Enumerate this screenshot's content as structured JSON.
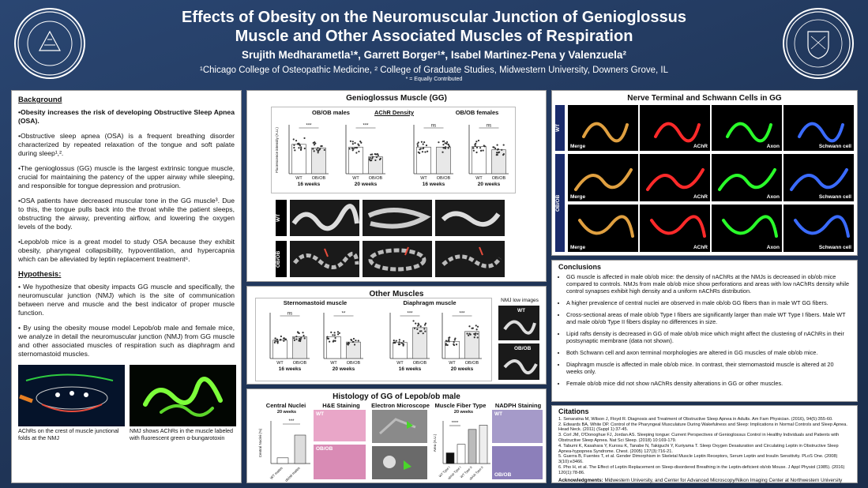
{
  "header": {
    "title_line1": "Effects of Obesity on the Neuromuscular Junction of Genioglossus",
    "title_line2": "Muscle and Other Associated Muscles of Respiration",
    "authors": "Srujith Medharametla¹*, Garrett Borger¹*, Isabel Martinez-Pena y Valenzuela²",
    "affiliations": "¹Chicago College of Osteopathic Medicine, ² College of Graduate Studies, Midwestern University, Downers Grove, IL",
    "note": "* = Equally Contributed"
  },
  "seal": {
    "left_text": "MIDWESTERN UNIVERSITY",
    "right_text": "MIDWESTERN UNIVERSITY",
    "right_year": "1900"
  },
  "background": {
    "heading": "Background",
    "p1": "•Obesity increases the risk of developing Obstructive Sleep Apnea (OSA).",
    "p2": "•Obstructive sleep apnea (OSA) is a frequent breathing disorder characterized by repeated relaxation of the tongue and soft palate during sleep¹,².",
    "p3": "•The genioglossus (GG) muscle is the largest extrinsic tongue muscle, crucial for maintaining the patency of the upper airway while sleeping, and responsible for tongue depression and protrusion.",
    "p4": "•OSA patients have decreased muscular tone in the GG muscle³. Due to this, the tongue pulls back into the throat while the patient sleeps, obstructing the airway, preventing airflow, and lowering the oxygen levels of the body.",
    "p5": "•Lepob/ob mice is a great model to study OSA because they exhibit obesity, pharyngeal collapsibility, hypoventilation, and hypercapnia which can be alleviated by leptin replacement treatment⁶."
  },
  "hypothesis": {
    "heading": "Hypothesis:",
    "p1": "• We hypothesize that obesity impacts GG muscle and specifically, the neuromuscular junction (NMJ) which is the site of communication between nerve and muscle and the best indicator of proper muscle function.",
    "p2": "• By using the obesity mouse model Lepob/ob male and female mice, we analyze in detail the neuromuscular junction (NMJ) from GG muscle and other associated muscles of respiration such as diaphragm and sternomastoid muscles.",
    "cap1": "AChRs on the crest of muscle junctional folds at the NMJ",
    "cap2": "NMJ shows AChRs in the muscle labeled with fluorescent green α-bungarotoxin"
  },
  "gg": {
    "title": "Genioglossus Muscle (GG)",
    "males": "OB/OB males",
    "density": "AChR Density",
    "females": "OB/OB females",
    "ylabel": "Fluorescence intensity (A.U.)",
    "wk16": "16 weeks",
    "wk20": "20 weeks",
    "wt": "WT",
    "obob": "OB/OB",
    "sig3": "***",
    "ns": "ns",
    "row_wt": "WT",
    "row_obob": "OB/OB"
  },
  "other": {
    "title": "Other Muscles",
    "sterno": "Sternomastoid muscle",
    "diaph": "Diaphragm muscle",
    "nmj_low": "NMJ low images",
    "ns": "ns",
    "sig2": "**",
    "sig3": "***",
    "wt": "WT",
    "obob": "OB/OB",
    "wk16": "16 weeks",
    "wk20": "20 weeks"
  },
  "hist": {
    "title": "Histology of GG of Lepob/ob male",
    "central": "Central Nuclei",
    "he": "H&E Staining",
    "em": "Electron Microscope",
    "fiber": "Muscle Fiber Type",
    "nadph": "NADPH Staining",
    "wk20": "20 weeks",
    "sig3": "***",
    "sig4": "****",
    "wt": "WT",
    "obob": "OB/OB",
    "ylabel_cn": "Central Nuclei (%)",
    "ylabel_area": "Area (A.U.)",
    "x_wt": "WT males",
    "x_ob": "ob/ob males"
  },
  "nerve": {
    "title": "Nerve Terminal and Schwann Cells in GG",
    "wt": "WT",
    "obob": "OB/OB",
    "merge": "Merge",
    "achr": "AChR",
    "axon": "Axon",
    "schwann": "Schwann cell"
  },
  "conclusions": {
    "heading": "Conclusions",
    "items": [
      "GG muscle is affected in male ob/ob mice: the density of nAChRs at the NMJs is decreased in ob/ob mice compared to controls. NMJs from male ob/ob mice show perforations and areas with low nAChRs density while control synapses exhibit high density and a uniform nAChRs distribution.",
      "A higher prevalence of central nuclei are observed in male ob/ob GG fibers than in male WT GG fibers.",
      "Cross-sectional areas of male ob/ob Type I fibers are significantly larger than male WT Type I fibers. Male WT and male ob/ob Type II fibers display no differences in size.",
      "Lipid rafts density is decreased in GG of male ob/ob mice which might affect the clustering of nAChRs in their postsynaptic membrane (data not shown).",
      "Both Schwann cell and axon terminal morphologies are altered in GG muscles of male ob/ob mice.",
      "Diaphragm muscle is affected in male ob/ob mice. In contrast, their sternomastoid muscle is altered at 20 weeks only.",
      "Female ob/ob mice did not show nAChRs density alterations in GG or other muscles."
    ]
  },
  "citations": {
    "heading": "Citations",
    "items": [
      "1. Senaratna M, Wilson J, Floyd R. Diagnosis and Treatment of Obstructive Sleep Apnea in Adults. Am Fam Physician. (2016), 94(5):355-60.",
      "2. Edwards BA, White DP. Control of the Pharyngeal Musculature During Wakefulness and Sleep: Implications in Normal Controls and Sleep Apnea. Head Neck. (2011) (Suppl 1):37-45.",
      "3. Corl JM, O'Donoghue FJ, Jordan AS. Sleeping tongue: Current Perspectives of Genioglossus Control in Healthy Individuals and Patients with Obstructive Sleep Apnea. Nat Sci Sleep. (2018) 10:169-179.",
      "4. Tabumi K, Kasahara Y, Kurosu K, Tanabe N, Takiguchi Y, Kuriyama T. Sleep Oxygen Desaturation and Circulating Leptin in Obstructive Sleep Apnea-hypopnea Syndrome. Chest. (2005) 127(3):716-21.",
      "5. Guerra B, Fuentes T, et al. Gender Dimorphism in Skeletal Muscle Leptin Receptors, Serum Leptin and Insulin Sensitivity. PLoS One. (2008) 3(10):e3466.",
      "6. Pho H, et al. The Effect of Leptin Replacement on Sleep-disordered Breathing in the Leptin-deficient ob/ob Mouse. J Appl Physiol (1985). (2016) 120(1):78-86."
    ],
    "ack_label": "Acknowledgments:",
    "ack_text": "Midwestern University, and Center for Advanced Microscopy/Nikon Imaging Center at Northwestern University"
  },
  "chart_data": [
    {
      "type": "scatter",
      "title": "OB/OB males",
      "categories": [
        "WT",
        "OB/OB"
      ],
      "values": [
        108,
        95
      ],
      "xlabel": "16 weeks",
      "ylabel": "Fluorescence intensity (A.U.)",
      "annotation": "***"
    },
    {
      "type": "scatter",
      "title": "AChR Density",
      "categories": [
        "WT",
        "OB/OB"
      ],
      "values": [
        98,
        62
      ],
      "xlabel": "20 weeks",
      "ylabel": "Fluorescence intensity (A.U.)",
      "annotation": "***"
    },
    {
      "type": "scatter",
      "title": "OB/OB females",
      "categories": [
        "WT",
        "OB/OB"
      ],
      "values": [
        98,
        98
      ],
      "xlabel": "16 weeks",
      "ylabel": "Fluorescence intensity (A.U.)",
      "annotation": "ns"
    },
    {
      "type": "scatter",
      "title": "OB/OB females",
      "categories": [
        "WT",
        "OB/OB"
      ],
      "values": [
        100,
        88
      ],
      "xlabel": "20 weeks",
      "ylabel": "Fluorescence intensity (A.U.)",
      "annotation": "ns"
    },
    {
      "type": "scatter",
      "title": "Sternomastoid muscle",
      "categories": [
        "WT",
        "OB/OB"
      ],
      "values": [
        80,
        95
      ],
      "xlabel": "16 weeks",
      "annotation": "ns"
    },
    {
      "type": "scatter",
      "title": "Sternomastoid muscle",
      "categories": [
        "WT",
        "OB/OB"
      ],
      "values": [
        95,
        72
      ],
      "xlabel": "20 weeks",
      "annotation": "**"
    },
    {
      "type": "scatter",
      "title": "Diaphragm muscle",
      "categories": [
        "WT",
        "OB/OB"
      ],
      "values": [
        70,
        135
      ],
      "xlabel": "16 weeks",
      "annotation": "***"
    },
    {
      "type": "scatter",
      "title": "Diaphragm muscle",
      "categories": [
        "WT",
        "OB/OB"
      ],
      "values": [
        75,
        118
      ],
      "xlabel": "20 weeks",
      "annotation": "***"
    },
    {
      "type": "bar",
      "title": "Central Nuclei",
      "categories": [
        "WT males",
        "ob/ob males"
      ],
      "values": [
        2,
        10
      ],
      "ylabel": "Central Nuclei (%)",
      "annotation": "***"
    },
    {
      "type": "bar",
      "title": "Muscle Fiber Type",
      "categories": [
        "WT Type I",
        "ob/ob Type I",
        "WT Type II",
        "ob/ob Type II"
      ],
      "values": [
        5,
        9,
        16,
        18
      ],
      "ylabel": "Area (A.U.)",
      "annotation": "****"
    }
  ]
}
